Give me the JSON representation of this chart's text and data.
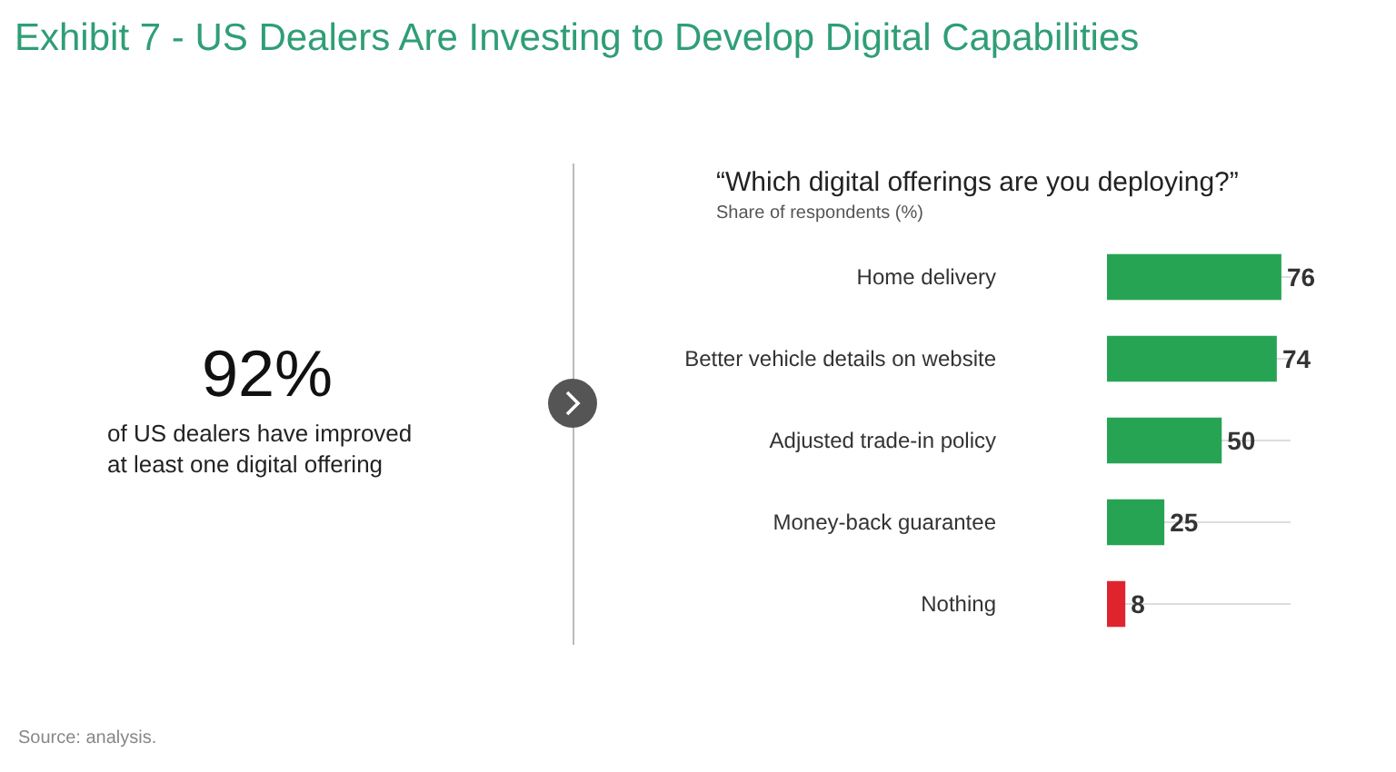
{
  "chart_data": {
    "type": "bar",
    "orientation": "horizontal",
    "title": "Exhibit 7 - US Dealers Are Investing to Develop Digital Capabilities",
    "subtitle": "“Which digital offerings are you deploying?”",
    "xlabel": "Share of respondents (%)",
    "categories": [
      "Home delivery",
      "Better vehicle details on website",
      "Adjusted trade-in policy",
      "Money-back guarantee",
      "Nothing"
    ],
    "values": [
      76,
      74,
      50,
      25,
      8
    ],
    "colors": [
      "#27a453",
      "#27a453",
      "#27a453",
      "#27a453",
      "#e0242e"
    ],
    "data_labels": true,
    "grid": "y",
    "annotations": [
      "92%",
      "of US dealers have improved\nat least one digital offering",
      "Source: analysis."
    ]
  }
}
